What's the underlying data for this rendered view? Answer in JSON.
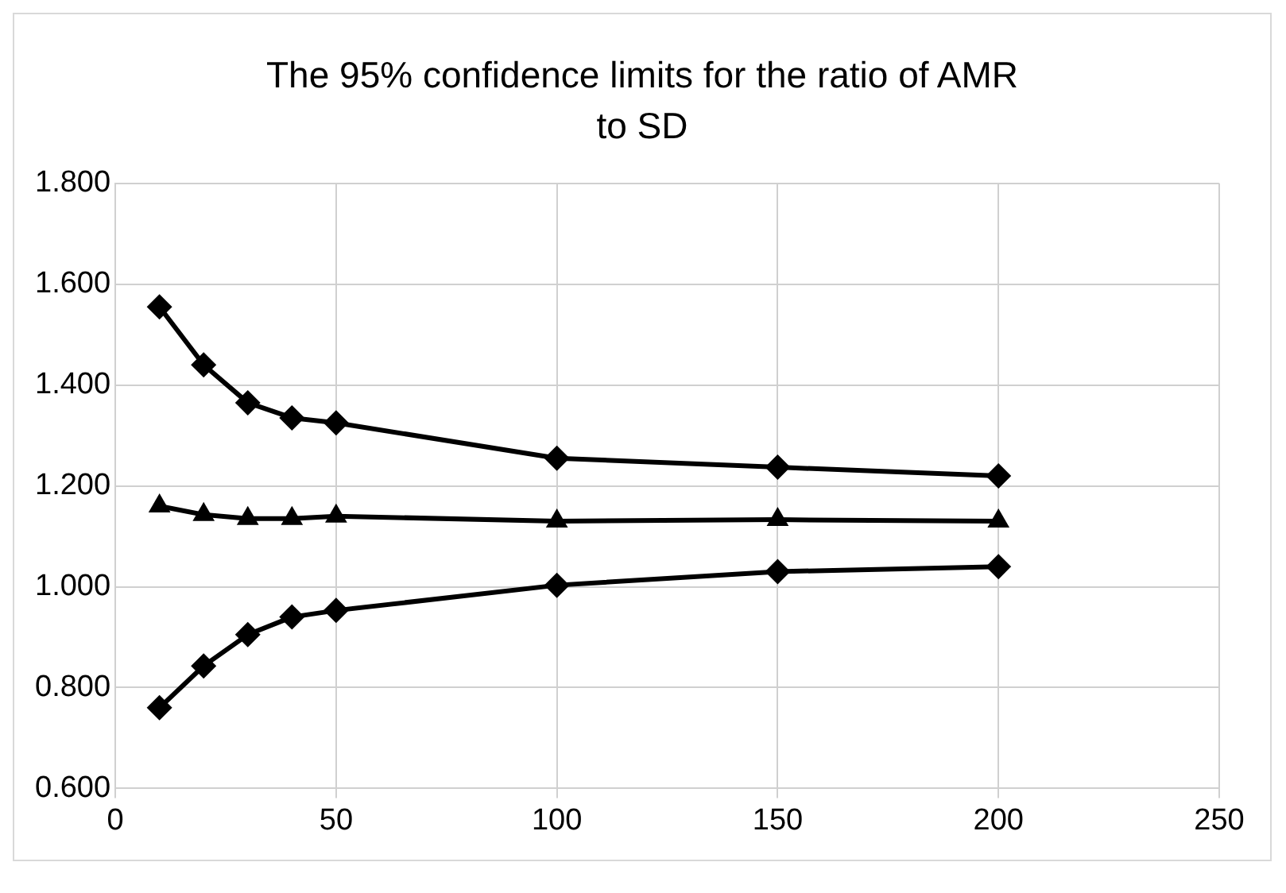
{
  "chart_data": {
    "type": "line",
    "title": "The 95% confidence limits for the ratio of AMR to SD",
    "xlim": [
      0,
      250
    ],
    "xticks": [
      0,
      50,
      100,
      150,
      200,
      250
    ],
    "ylim": [
      0.6,
      1.8
    ],
    "yticks": [
      {
        "value": 0.6,
        "label": "0.600"
      },
      {
        "value": 0.8,
        "label": "0.800"
      },
      {
        "value": 1.0,
        "label": "1.000"
      },
      {
        "value": 1.2,
        "label": "1.200"
      },
      {
        "value": 1.4,
        "label": "1.400"
      },
      {
        "value": 1.6,
        "label": "1.600"
      },
      {
        "value": 1.8,
        "label": "1.800"
      }
    ],
    "x": [
      10,
      20,
      30,
      40,
      50,
      100,
      150,
      200
    ],
    "grid": true,
    "legend": false,
    "line_style": "solid",
    "series": [
      {
        "color": "#000000",
        "marker": "diamond",
        "values": [
          1.555,
          1.44,
          1.365,
          1.335,
          1.325,
          1.255,
          1.237,
          1.22
        ]
      },
      {
        "color": "#000000",
        "marker": "triangle",
        "values": [
          1.16,
          1.143,
          1.135,
          1.135,
          1.14,
          1.13,
          1.133,
          1.13
        ]
      },
      {
        "color": "#000000",
        "marker": "diamond",
        "values": [
          0.76,
          0.843,
          0.905,
          0.94,
          0.953,
          1.003,
          1.03,
          1.04
        ]
      }
    ]
  }
}
